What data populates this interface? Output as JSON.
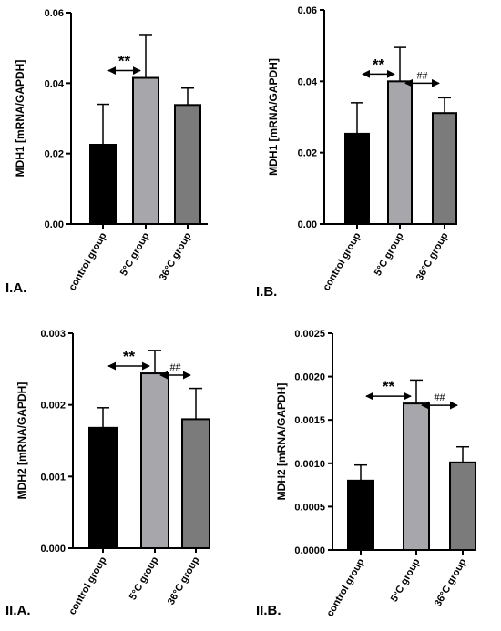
{
  "chart_data": [
    {
      "type": "bar",
      "panel_label": "I.A.",
      "ylabel": "MDH1 [mRNA/GAPDH]",
      "ylim": [
        0,
        0.06
      ],
      "yticks": [
        0,
        0.02,
        0.04,
        0.06
      ],
      "ytick_labels": [
        "0.00",
        "0.02",
        "0.04",
        "0.06"
      ],
      "categories": [
        "control group",
        "5°C group",
        "36°C group"
      ],
      "values": [
        0.0225,
        0.0415,
        0.0338
      ],
      "errors": [
        0.0115,
        0.0123,
        0.0048
      ],
      "bar_colors": [
        "#000000",
        "#a6a6ab",
        "#7b7b7b"
      ],
      "significance": [
        {
          "label": "**",
          "from": 0,
          "to": 1
        }
      ]
    },
    {
      "type": "bar",
      "panel_label": "I.B.",
      "ylabel": "MDH1 [mRNA/GAPDH]",
      "ylim": [
        0,
        0.06
      ],
      "yticks": [
        0,
        0.02,
        0.04,
        0.06
      ],
      "ytick_labels": [
        "0.00",
        "0.02",
        "0.04",
        "0.06"
      ],
      "categories": [
        "control group",
        "5°C group",
        "36°C group"
      ],
      "values": [
        0.0253,
        0.04,
        0.0311
      ],
      "errors": [
        0.0087,
        0.0095,
        0.0043
      ],
      "bar_colors": [
        "#000000",
        "#a6a6ab",
        "#7b7b7b"
      ],
      "significance": [
        {
          "label": "**",
          "from": 0,
          "to": 1
        },
        {
          "label": "##",
          "from": 1,
          "to": 2
        }
      ]
    },
    {
      "type": "bar",
      "panel_label": "II.A.",
      "ylabel": "MDH2 [mRNA/GAPDH]",
      "ylim": [
        0,
        0.003
      ],
      "yticks": [
        0,
        0.001,
        0.002,
        0.003
      ],
      "ytick_labels": [
        "0.000",
        "0.001",
        "0.002",
        "0.003"
      ],
      "categories": [
        "control group",
        "5°C group",
        "36°C group"
      ],
      "values": [
        0.00168,
        0.00244,
        0.0018
      ],
      "errors": [
        0.00028,
        0.00032,
        0.00043
      ],
      "bar_colors": [
        "#000000",
        "#a6a6ab",
        "#7b7b7b"
      ],
      "significance": [
        {
          "label": "**",
          "from": 0,
          "to": 1
        },
        {
          "label": "##",
          "from": 1,
          "to": 2
        }
      ]
    },
    {
      "type": "bar",
      "panel_label": "II.B.",
      "ylabel": "MDH2 [mRNA/GAPDH]",
      "ylim": [
        0,
        0.0025
      ],
      "yticks": [
        0,
        0.0005,
        0.001,
        0.0015,
        0.002,
        0.0025
      ],
      "ytick_labels": [
        "0.0000",
        "0.0005",
        "0.0010",
        "0.0015",
        "0.0020",
        "0.0025"
      ],
      "categories": [
        "control group",
        "5°C group",
        "36°C group"
      ],
      "values": [
        0.0008,
        0.00169,
        0.00101
      ],
      "errors": [
        0.00018,
        0.00027,
        0.00018
      ],
      "bar_colors": [
        "#000000",
        "#a6a6ab",
        "#7b7b7b"
      ],
      "significance": [
        {
          "label": "**",
          "from": 0,
          "to": 1
        },
        {
          "label": "##",
          "from": 1,
          "to": 2
        }
      ]
    }
  ]
}
